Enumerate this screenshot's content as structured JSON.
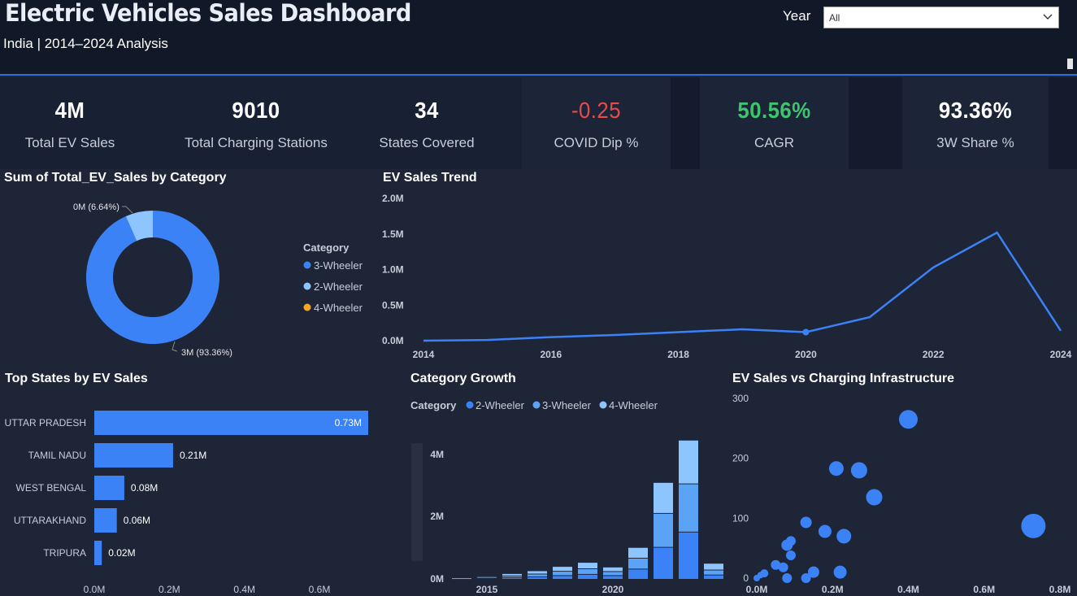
{
  "header": {
    "title": "Electric Vehicles Sales Dashboard",
    "subtitle": "India | 2014–2024 Analysis",
    "year_label": "Year",
    "year_value": "All"
  },
  "kpis": [
    {
      "value": "4M",
      "label": "Total EV Sales",
      "color": "#ffffff"
    },
    {
      "value": "9010",
      "label": "Total Charging Stations",
      "color": "#ffffff"
    },
    {
      "value": "34",
      "label": "States Covered",
      "color": "#ffffff"
    },
    {
      "value": "-0.25",
      "label": "COVID Dip %",
      "color": "#e84a4a"
    },
    {
      "value": "50.56%",
      "label": "CAGR",
      "color": "#3ec46d"
    },
    {
      "value": "93.36%",
      "label": "3W Share %",
      "color": "#ffffff"
    }
  ],
  "colors": {
    "accent": "#3b82f6",
    "light_blue": "#8ec5ff",
    "mid_blue": "#5ba3f5",
    "orange": "#f5a623",
    "background": "#1e2537"
  },
  "donut": {
    "title": "Sum of Total_EV_Sales by Category",
    "legend_title": "Category",
    "legend": [
      {
        "name": "3-Wheeler",
        "color": "#3b82f6"
      },
      {
        "name": "2-Wheeler",
        "color": "#8ec5ff"
      },
      {
        "name": "4-Wheeler",
        "color": "#f5a623"
      }
    ],
    "label_large": "3M (93.36%)",
    "label_small": "0M (6.64%)"
  },
  "trend": {
    "title": "EV Sales Trend",
    "y_ticks": [
      "2.0M",
      "1.5M",
      "1.0M",
      "0.5M",
      "0.0M"
    ],
    "x_ticks": [
      "2014",
      "2016",
      "2018",
      "2020",
      "2022",
      "2024"
    ]
  },
  "states": {
    "title": "Top States by EV Sales",
    "rows": [
      {
        "name": "UTTAR PRADESH",
        "label": "0.73M"
      },
      {
        "name": "TAMIL NADU",
        "label": "0.21M"
      },
      {
        "name": "WEST BENGAL",
        "label": "0.08M"
      },
      {
        "name": "UTTARAKHAND",
        "label": "0.06M"
      },
      {
        "name": "TRIPURA",
        "label": "0.02M"
      }
    ],
    "x_ticks": [
      "0.0M",
      "0.2M",
      "0.4M",
      "0.6M"
    ]
  },
  "growth": {
    "title": "Category Growth",
    "legend_title": "Category",
    "legend": [
      {
        "name": "2-Wheeler",
        "color": "#3b82f6"
      },
      {
        "name": "3-Wheeler",
        "color": "#5ba3f5"
      },
      {
        "name": "4-Wheeler",
        "color": "#8ec5ff"
      }
    ],
    "y_ticks": [
      "4M",
      "2M",
      "0M"
    ],
    "x_ticks": [
      "2015",
      "2020"
    ]
  },
  "scatter": {
    "title": "EV Sales vs Charging Infrastructure",
    "y_ticks": [
      "300",
      "200",
      "100",
      "0"
    ],
    "x_ticks": [
      "0.0M",
      "0.2M",
      "0.4M",
      "0.6M",
      "0.8M"
    ]
  },
  "chart_data": [
    {
      "type": "pie",
      "title": "Sum of Total_EV_Sales by Category",
      "categories": [
        "3-Wheeler",
        "2-Wheeler",
        "4-Wheeler"
      ],
      "values": [
        93.36,
        6.64,
        0.0
      ],
      "legend": "right"
    },
    {
      "type": "line",
      "title": "EV Sales Trend",
      "x": [
        2014,
        2015,
        2016,
        2017,
        2018,
        2019,
        2020,
        2021,
        2022,
        2023,
        2024
      ],
      "values": [
        0.0,
        0.01,
        0.05,
        0.08,
        0.12,
        0.16,
        0.12,
        0.33,
        1.03,
        1.52,
        0.14
      ],
      "ylim": [
        0,
        2.0
      ],
      "ylabel_unit": "M"
    },
    {
      "type": "bar",
      "orientation": "horizontal",
      "title": "Top States by EV Sales",
      "categories": [
        "UTTAR PRADESH",
        "TAMIL NADU",
        "WEST BENGAL",
        "UTTARAKHAND",
        "TRIPURA"
      ],
      "values": [
        0.73,
        0.21,
        0.08,
        0.06,
        0.02
      ],
      "xlim": [
        0,
        0.7
      ]
    },
    {
      "type": "bar",
      "stacked": true,
      "title": "Category Growth",
      "categories": [
        2014,
        2015,
        2016,
        2017,
        2018,
        2019,
        2020,
        2021,
        2022,
        2023,
        2024
      ],
      "series": [
        {
          "name": "2-Wheeler",
          "values": [
            0.0,
            0.02,
            0.05,
            0.08,
            0.12,
            0.16,
            0.12,
            0.33,
            1.03,
            1.52,
            0.14
          ]
        },
        {
          "name": "3-Wheeler",
          "values": [
            0.01,
            0.02,
            0.06,
            0.09,
            0.14,
            0.18,
            0.13,
            0.35,
            1.09,
            1.55,
            0.16
          ]
        },
        {
          "name": "4-Wheeler",
          "values": [
            0.01,
            0.02,
            0.05,
            0.08,
            0.13,
            0.18,
            0.12,
            0.32,
            0.97,
            1.38,
            0.19
          ]
        }
      ],
      "ylim": [
        0,
        4.5
      ]
    },
    {
      "type": "scatter",
      "title": "EV Sales vs Charging Infrastructure",
      "points": [
        {
          "x": 0.0,
          "y": 0,
          "size": 8
        },
        {
          "x": 0.01,
          "y": 5,
          "size": 8
        },
        {
          "x": 0.02,
          "y": 8,
          "size": 10
        },
        {
          "x": 0.05,
          "y": 22,
          "size": 12
        },
        {
          "x": 0.07,
          "y": 18,
          "size": 12
        },
        {
          "x": 0.08,
          "y": 55,
          "size": 14
        },
        {
          "x": 0.09,
          "y": 38,
          "size": 12
        },
        {
          "x": 0.09,
          "y": 62,
          "size": 12
        },
        {
          "x": 0.08,
          "y": 0,
          "size": 12
        },
        {
          "x": 0.13,
          "y": 0,
          "size": 12
        },
        {
          "x": 0.15,
          "y": 10,
          "size": 14
        },
        {
          "x": 0.13,
          "y": 93,
          "size": 14
        },
        {
          "x": 0.18,
          "y": 78,
          "size": 16
        },
        {
          "x": 0.22,
          "y": 10,
          "size": 16
        },
        {
          "x": 0.23,
          "y": 70,
          "size": 18
        },
        {
          "x": 0.21,
          "y": 183,
          "size": 18
        },
        {
          "x": 0.27,
          "y": 180,
          "size": 20
        },
        {
          "x": 0.31,
          "y": 135,
          "size": 20
        },
        {
          "x": 0.4,
          "y": 265,
          "size": 23
        },
        {
          "x": 0.73,
          "y": 87,
          "size": 30
        }
      ],
      "xlim": [
        0,
        0.8
      ],
      "ylim": [
        0,
        300
      ]
    }
  ]
}
